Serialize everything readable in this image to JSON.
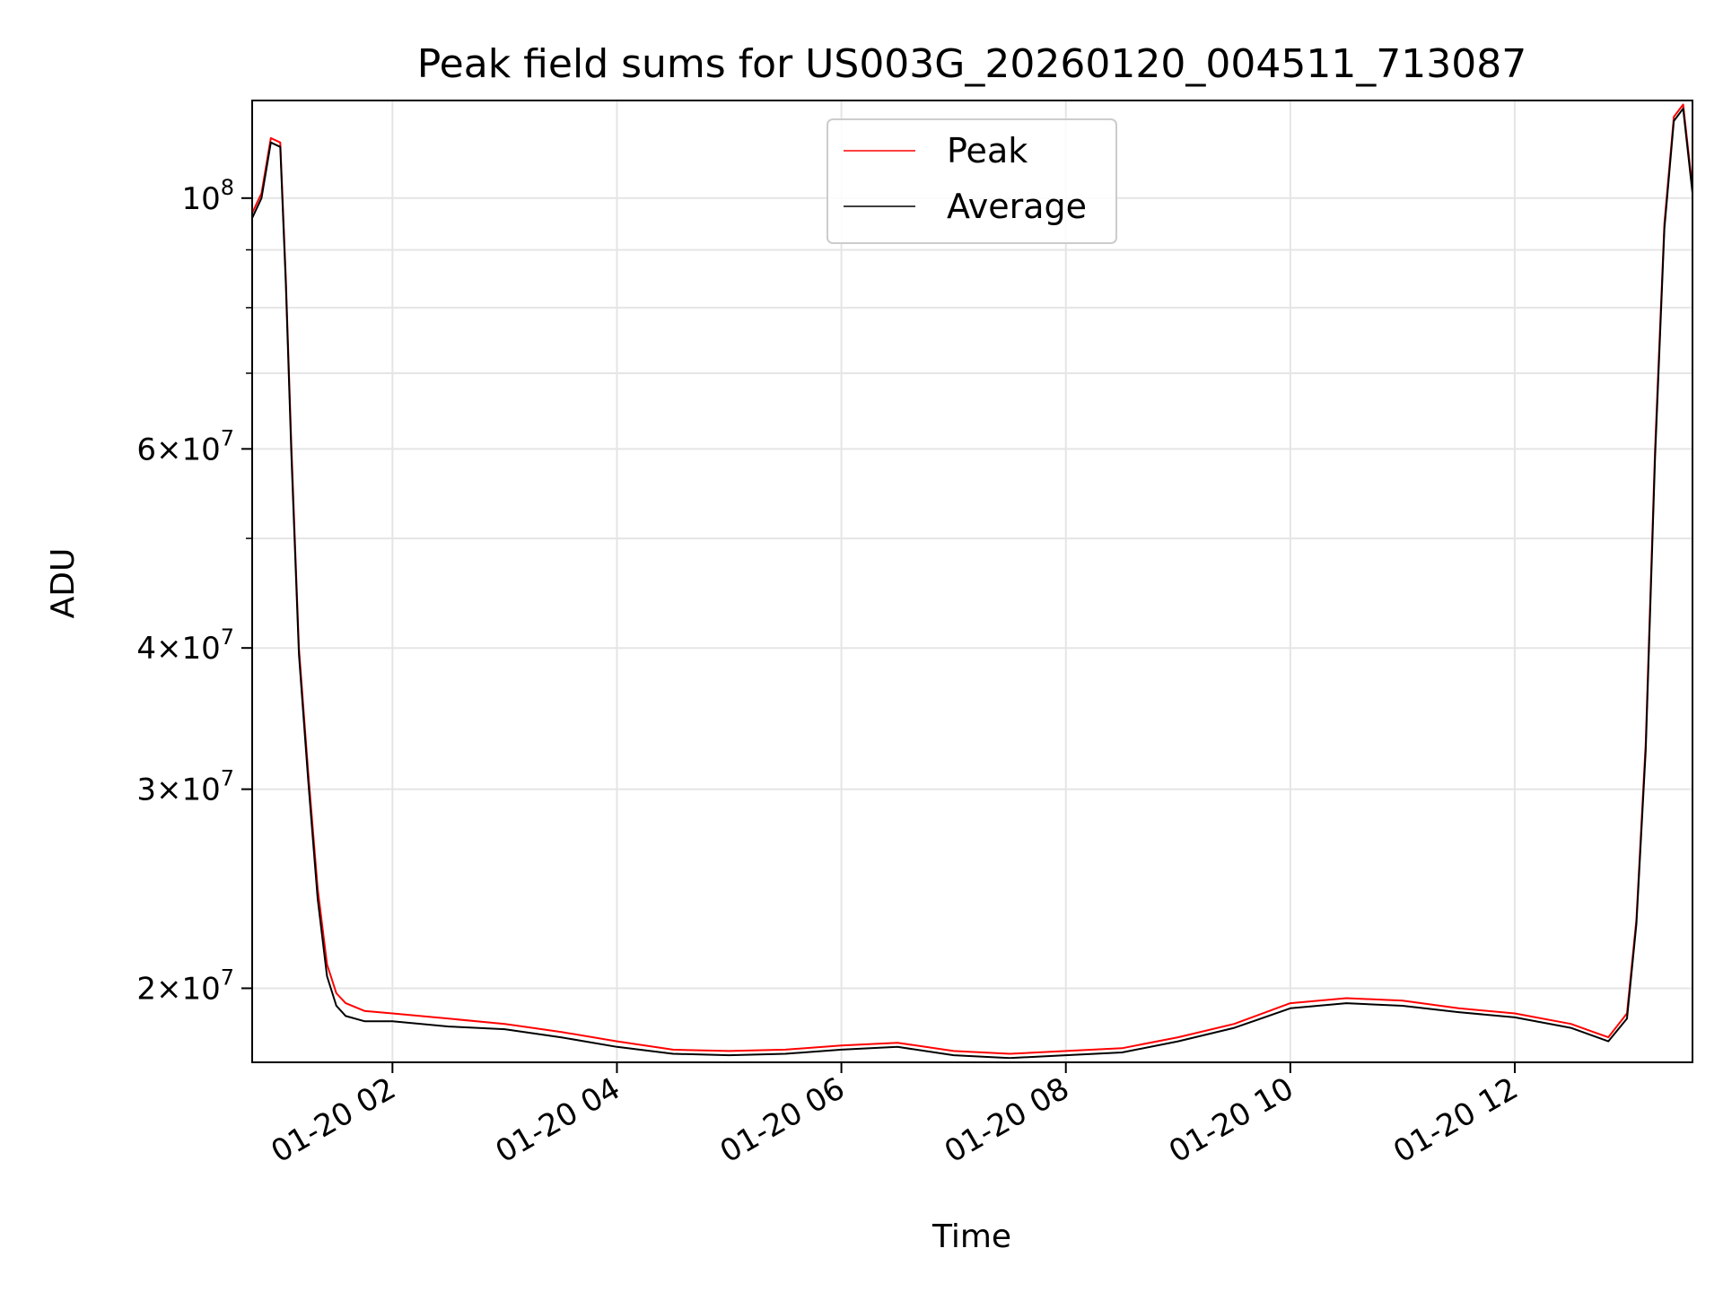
{
  "chart_data": {
    "type": "line",
    "title": "Peak field sums for US003G_20260120_004511_713087",
    "xlabel": "Time",
    "ylabel": "ADU",
    "y_scale": "log",
    "xlim": [
      "2026-01-20 00:45",
      "2026-01-20 13:35"
    ],
    "ylim": [
      17200000,
      122000000
    ],
    "grid": true,
    "legend_position": "top-center",
    "x_ticks": [
      {
        "value": "2026-01-20 02:00",
        "label": "01-20 02"
      },
      {
        "value": "2026-01-20 04:00",
        "label": "01-20 04"
      },
      {
        "value": "2026-01-20 06:00",
        "label": "01-20 06"
      },
      {
        "value": "2026-01-20 08:00",
        "label": "01-20 08"
      },
      {
        "value": "2026-01-20 10:00",
        "label": "01-20 10"
      },
      {
        "value": "2026-01-20 12:00",
        "label": "01-20 12"
      }
    ],
    "y_ticks": [
      {
        "value": 20000000,
        "mantissa": "2",
        "base": "10",
        "exp": "7"
      },
      {
        "value": 30000000,
        "mantissa": "3",
        "base": "10",
        "exp": "7"
      },
      {
        "value": 40000000,
        "mantissa": "4",
        "base": "10",
        "exp": "7"
      },
      {
        "value": 60000000,
        "mantissa": "6",
        "base": "10",
        "exp": "7"
      },
      {
        "value": 100000000,
        "mantissa": "",
        "base": "10",
        "exp": "8"
      }
    ],
    "y_minor_ticks": [
      50000000,
      70000000,
      80000000,
      90000000
    ],
    "series": [
      {
        "name": "Peak",
        "color": "#ff0000",
        "x": [
          "2026-01-20 00:45",
          "2026-01-20 00:50",
          "2026-01-20 00:55",
          "2026-01-20 01:00",
          "2026-01-20 01:03",
          "2026-01-20 01:06",
          "2026-01-20 01:10",
          "2026-01-20 01:15",
          "2026-01-20 01:20",
          "2026-01-20 01:25",
          "2026-01-20 01:30",
          "2026-01-20 01:35",
          "2026-01-20 01:45",
          "2026-01-20 02:00",
          "2026-01-20 02:30",
          "2026-01-20 03:00",
          "2026-01-20 03:30",
          "2026-01-20 04:00",
          "2026-01-20 04:30",
          "2026-01-20 05:00",
          "2026-01-20 05:30",
          "2026-01-20 06:00",
          "2026-01-20 06:30",
          "2026-01-20 07:00",
          "2026-01-20 07:30",
          "2026-01-20 08:00",
          "2026-01-20 08:30",
          "2026-01-20 09:00",
          "2026-01-20 09:30",
          "2026-01-20 10:00",
          "2026-01-20 10:30",
          "2026-01-20 11:00",
          "2026-01-20 11:30",
          "2026-01-20 12:00",
          "2026-01-20 12:30",
          "2026-01-20 12:50",
          "2026-01-20 13:00",
          "2026-01-20 13:05",
          "2026-01-20 13:10",
          "2026-01-20 13:15",
          "2026-01-20 13:20",
          "2026-01-20 13:25",
          "2026-01-20 13:30",
          "2026-01-20 13:35"
        ],
        "values": [
          97000000,
          101000000,
          113000000,
          112000000,
          85000000,
          60000000,
          40000000,
          31000000,
          24500000,
          21000000,
          19800000,
          19400000,
          19100000,
          19000000,
          18800000,
          18600000,
          18300000,
          17950000,
          17650000,
          17600000,
          17650000,
          17800000,
          17900000,
          17600000,
          17500000,
          17600000,
          17700000,
          18100000,
          18600000,
          19400000,
          19600000,
          19500000,
          19200000,
          19000000,
          18600000,
          18100000,
          19000000,
          23000000,
          33000000,
          60000000,
          95000000,
          118000000,
          121000000,
          102000000
        ]
      },
      {
        "name": "Average",
        "color": "#000000",
        "x": [
          "2026-01-20 00:45",
          "2026-01-20 00:50",
          "2026-01-20 00:55",
          "2026-01-20 01:00",
          "2026-01-20 01:03",
          "2026-01-20 01:06",
          "2026-01-20 01:10",
          "2026-01-20 01:15",
          "2026-01-20 01:20",
          "2026-01-20 01:25",
          "2026-01-20 01:30",
          "2026-01-20 01:35",
          "2026-01-20 01:45",
          "2026-01-20 02:00",
          "2026-01-20 02:30",
          "2026-01-20 03:00",
          "2026-01-20 03:30",
          "2026-01-20 04:00",
          "2026-01-20 04:30",
          "2026-01-20 05:00",
          "2026-01-20 05:30",
          "2026-01-20 06:00",
          "2026-01-20 06:30",
          "2026-01-20 07:00",
          "2026-01-20 07:30",
          "2026-01-20 08:00",
          "2026-01-20 08:30",
          "2026-01-20 09:00",
          "2026-01-20 09:30",
          "2026-01-20 10:00",
          "2026-01-20 10:30",
          "2026-01-20 11:00",
          "2026-01-20 11:30",
          "2026-01-20 12:00",
          "2026-01-20 12:30",
          "2026-01-20 12:50",
          "2026-01-20 13:00",
          "2026-01-20 13:05",
          "2026-01-20 13:10",
          "2026-01-20 13:15",
          "2026-01-20 13:20",
          "2026-01-20 13:25",
          "2026-01-20 13:30",
          "2026-01-20 13:35"
        ],
        "values": [
          96000000,
          100000000,
          112000000,
          111000000,
          84000000,
          59000000,
          39500000,
          30500000,
          24000000,
          20500000,
          19300000,
          18900000,
          18700000,
          18700000,
          18500000,
          18400000,
          18100000,
          17750000,
          17500000,
          17450000,
          17500000,
          17650000,
          17750000,
          17450000,
          17350000,
          17450000,
          17550000,
          17950000,
          18450000,
          19200000,
          19400000,
          19300000,
          19050000,
          18850000,
          18450000,
          17950000,
          18800000,
          22800000,
          32500000,
          59000000,
          94000000,
          117000000,
          120000000,
          101000000
        ]
      }
    ]
  }
}
